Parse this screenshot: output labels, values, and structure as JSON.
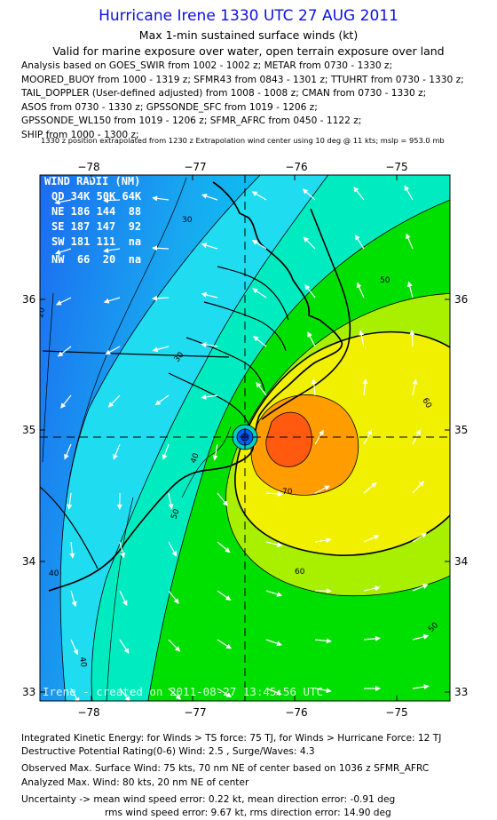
{
  "header": {
    "title": "Hurricane Irene 1330 UTC 27 AUG 2011",
    "subtitle": "Max 1-min sustained surface winds (kt)",
    "valid_text": "Valid for marine exposure over water, open terrain exposure over land"
  },
  "analysis_lines": [
    "Analysis based on GOES_SWIR from 1002 - 1002 z; METAR from 0730 - 1330 z;",
    "MOORED_BUOY from 1000 - 1319 z; SFMR43 from 0843 - 1301 z; TTUHRT from 0730 - 1330 z;",
    "TAIL_DOPPLER (User-defined adjusted) from 1008 - 1008 z; CMAN from 0730 - 1330 z;",
    "ASOS from 0730 - 1330 z; GPSSONDE_SFC from 1019 - 1206 z;",
    "GPSSONDE_WL150 from 1019 - 1206 z; SFMR_AFRC from 0450 - 1122 z;",
    "SHIP from 1000 - 1300 z;"
  ],
  "extrapolation_note": "1330 z position extrapolated from 1230 z Extrapolation wind center using 10 deg @ 11 kts; mslp = 953.0 mb",
  "map": {
    "lon_ticks": [
      "−78",
      "−77",
      "−76",
      "−75"
    ],
    "lat_ticks": [
      "36",
      "35",
      "34",
      "33"
    ],
    "wind_radii": {
      "title": "WIND RADII (NM)",
      "header": "QD 34K 50K 64K",
      "rows": [
        "NE 186 144  88",
        "SE 187 147  92",
        "SW 181 111  na",
        "NW  66  20  na"
      ]
    },
    "contour_labels": [
      "20",
      "30",
      "40",
      "40",
      "50",
      "50",
      "60",
      "60",
      "70",
      "50",
      "40",
      "30"
    ],
    "watermark": "Irene - created on 2011-08-27 13:45:56 UTC",
    "center": {
      "lon": -76.45,
      "lat": 34.93
    },
    "palette": {
      "blue": "#1c6cf0",
      "cyan": "#00f0f0",
      "green": "#00e000",
      "yellow": "#f0f000",
      "orange": "#ff8c00",
      "red": "#ff5010"
    }
  },
  "footer": {
    "lines": [
      "Integrated Kinetic Energy:  for Winds > TS force: 75 TJ,  for Winds > Hurricane Force: 12 TJ",
      "Destructive Potential Rating(0-6)   Wind: 2.5 , Surge/Waves: 4.3",
      "Observed Max. Surface Wind: 75 kts, 70 nm NE of center based on 1036 z SFMR_AFRC",
      "Analyzed Max. Wind: 80 kts, 20 nm NE of center",
      "Uncertainty -> mean wind speed error: 0.22 kt,   mean direction error:  -0.91 deg",
      "rms wind speed error: 9.67 kt,   rms direction error: 14.90 deg"
    ]
  }
}
